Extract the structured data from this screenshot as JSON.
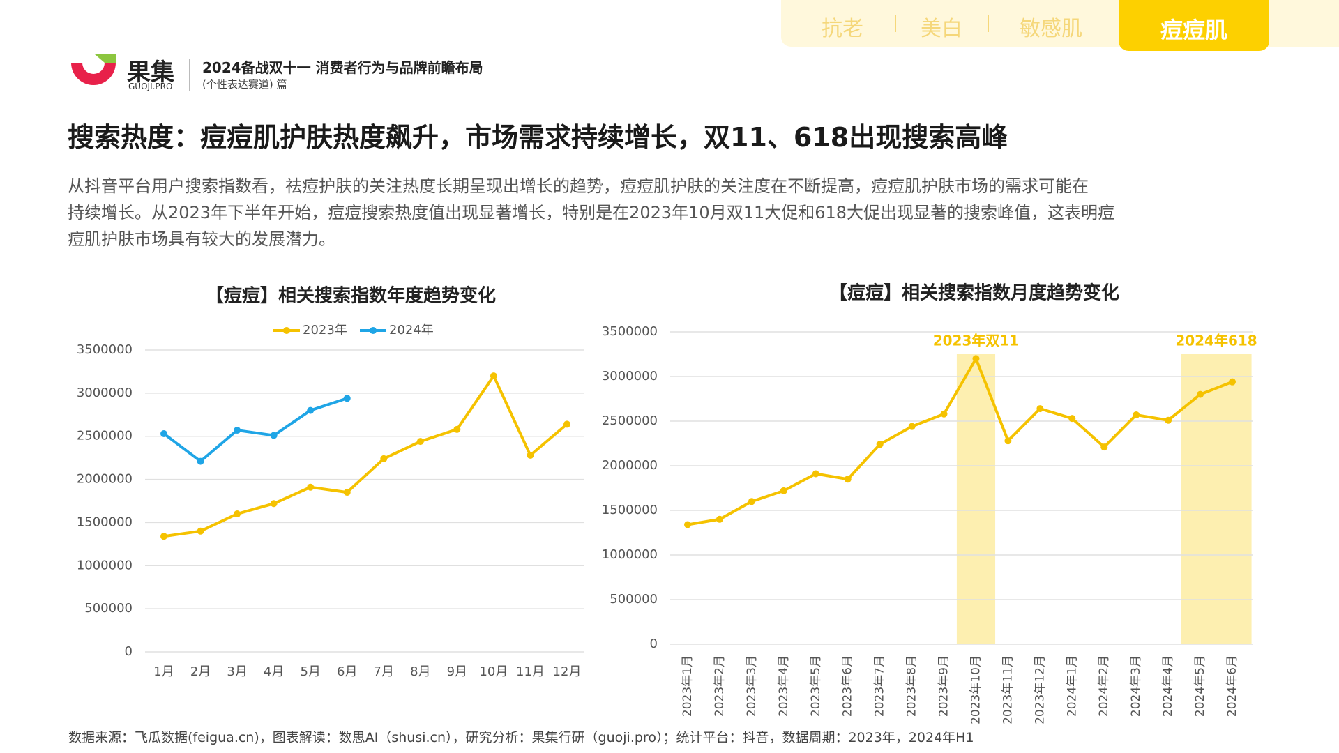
{
  "tabs": [
    "抗老",
    "美白",
    "敏感肌",
    "痘痘肌"
  ],
  "header": {
    "brand": "果集",
    "brand_sub": "GUOJI.PRO",
    "report": "2024备战双十一 消费者行为与品牌前瞻布局",
    "track": "(个性表达赛道) 篇"
  },
  "title": "搜索热度：痘痘肌护肤热度飙升，市场需求持续增长，双11、618出现搜索高峰",
  "paragraph": [
    "从抖音平台用户搜索指数看，祛痘护肤的关注热度长期呈现出增长的趋势，痘痘肌护肤的关注度在不断提高，痘痘肌护肤市场的需求可能在",
    "持续增长。从2023年下半年开始，痘痘搜索热度值出现显著增长，特别是在2023年10月双11大促和618大促出现显著的搜索峰值，这表明痘",
    "痘肌护肤市场具有较大的发展潜力。"
  ],
  "source": "数据来源：飞瓜数据(feigua.cn)，图表解读：数思AI（shusi.cn），研究分析：果集行研（guoji.pro）；统计平台：抖音，数据周期：2023年，2024年H1",
  "chart_data": [
    {
      "type": "line",
      "title": "【痘痘】相关搜索指数年度趋势变化",
      "categories": [
        "1月",
        "2月",
        "3月",
        "4月",
        "5月",
        "6月",
        "7月",
        "8月",
        "9月",
        "10月",
        "11月",
        "12月"
      ],
      "series": [
        {
          "name": "2023年",
          "color": "#f5c200",
          "values": [
            1340000,
            1400000,
            1600000,
            1720000,
            1910000,
            1850000,
            2240000,
            2440000,
            2580000,
            3200000,
            2280000,
            2640000
          ]
        },
        {
          "name": "2024年",
          "color": "#1fa5e6",
          "values": [
            2530000,
            2210000,
            2570000,
            2510000,
            2800000,
            2940000,
            null,
            null,
            null,
            null,
            null,
            null
          ]
        }
      ],
      "ylim": [
        0,
        3500000
      ],
      "yticks": [
        0,
        500000,
        1000000,
        1500000,
        2000000,
        2500000,
        3000000,
        3500000
      ],
      "grid": true,
      "legend": "top"
    },
    {
      "type": "line",
      "title": "【痘痘】相关搜索指数月度趋势变化",
      "categories": [
        "2023年1月",
        "2023年2月",
        "2023年3月",
        "2023年4月",
        "2023年5月",
        "2023年6月",
        "2023年7月",
        "2023年8月",
        "2023年9月",
        "2023年10月",
        "2023年11月",
        "2023年12月",
        "2024年1月",
        "2024年2月",
        "2024年3月",
        "2024年4月",
        "2024年5月",
        "2024年6月"
      ],
      "series": [
        {
          "name": null,
          "color": "#f5c200",
          "values": [
            1340000,
            1400000,
            1600000,
            1720000,
            1910000,
            1850000,
            2240000,
            2440000,
            2580000,
            3200000,
            2280000,
            2640000,
            2530000,
            2210000,
            2570000,
            2510000,
            2800000,
            2940000
          ]
        }
      ],
      "ylim": [
        0,
        3500000
      ],
      "yticks": [
        0,
        500000,
        1000000,
        1500000,
        2000000,
        2500000,
        3000000,
        3500000
      ],
      "grid": true,
      "highlights": [
        {
          "label": "2023年双11",
          "categories": [
            "2023年10月"
          ],
          "color": "#fdefb0"
        },
        {
          "label": "2024年618",
          "categories": [
            "2024年5月",
            "2024年6月"
          ],
          "color": "#fdefb0"
        }
      ]
    }
  ]
}
